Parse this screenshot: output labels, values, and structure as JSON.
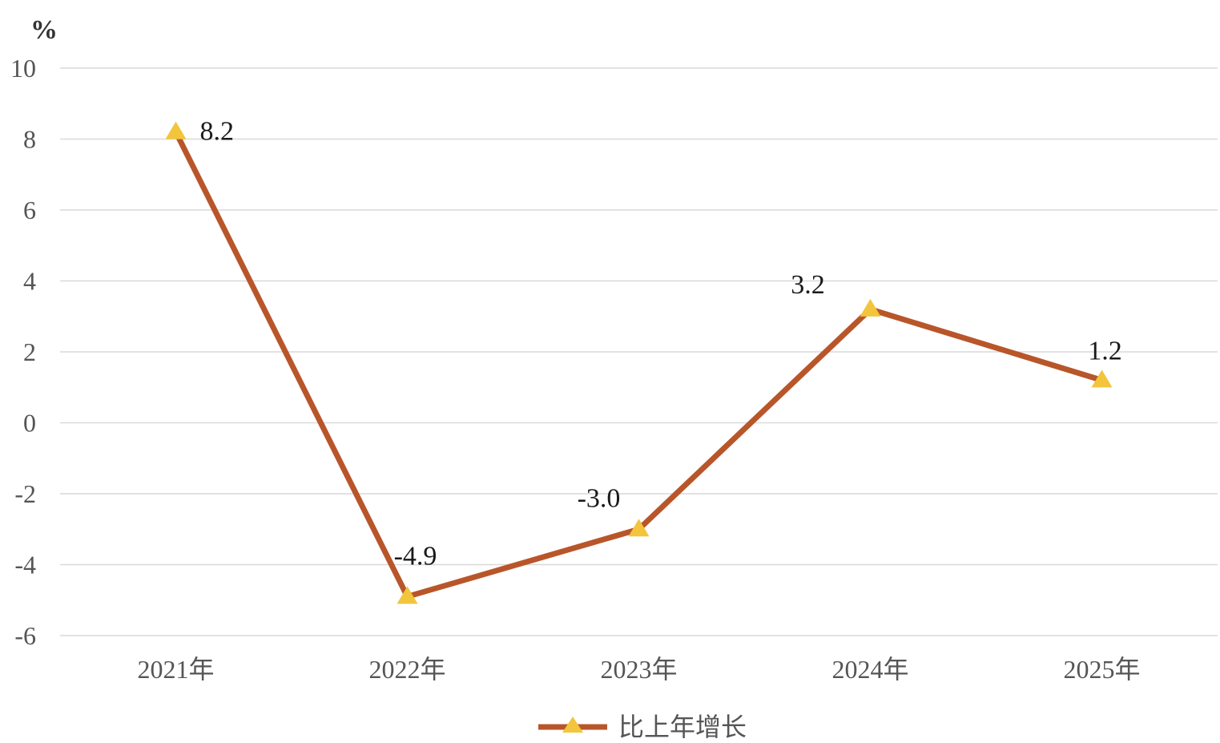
{
  "chart_data": {
    "type": "line",
    "categories": [
      "2021年",
      "2022年",
      "2023年",
      "2024年",
      "2025年"
    ],
    "series": [
      {
        "name": "比上年增长",
        "values": [
          8.2,
          -4.9,
          -3.0,
          3.2,
          1.2
        ],
        "labels": [
          "8.2",
          "-4.9",
          "-3.0",
          "3.2",
          "1.2"
        ]
      }
    ],
    "y_unit": "%",
    "ylim": [
      -6,
      10
    ],
    "yticks": [
      10,
      8,
      6,
      4,
      2,
      0,
      -2,
      -4,
      -6
    ],
    "grid": true,
    "legend_position": "bottom",
    "colors": {
      "line": "#b8562a",
      "marker": "#f2c53d",
      "grid": "#d9d9d9"
    }
  }
}
